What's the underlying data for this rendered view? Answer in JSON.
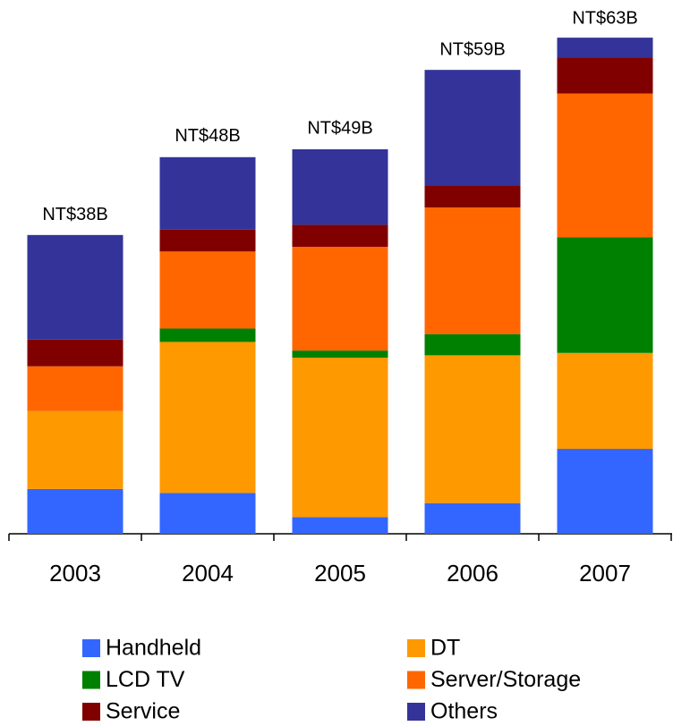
{
  "chart_data": {
    "type": "stacked-bar",
    "categories": [
      "2003",
      "2004",
      "2005",
      "2006",
      "2007"
    ],
    "totals": [
      38,
      48,
      49,
      59,
      63
    ],
    "total_labels": [
      "NT$38B",
      "NT$48B",
      "NT$49B",
      "NT$59B",
      "NT$63B"
    ],
    "series": [
      {
        "name": "Handheld",
        "color": "#3366ff",
        "values": [
          5.7,
          5.2,
          2.1,
          3.9,
          10.8
        ]
      },
      {
        "name": "DT",
        "color": "#ff9900",
        "values": [
          9.9,
          19.2,
          20.3,
          18.8,
          12.2
        ]
      },
      {
        "name": "LCD TV",
        "color": "#008000",
        "values": [
          0,
          1.7,
          0.9,
          2.7,
          14.7
        ]
      },
      {
        "name": "Server/Storage",
        "color": "#ff6600",
        "values": [
          5.7,
          9.8,
          13.2,
          16.1,
          18.3
        ]
      },
      {
        "name": "Service",
        "color": "#800000",
        "values": [
          3.4,
          2.8,
          2.8,
          2.8,
          4.6
        ]
      },
      {
        "name": "Others",
        "color": "#333399",
        "values": [
          13.3,
          9.2,
          9.6,
          14.7,
          2.5
        ]
      }
    ]
  }
}
